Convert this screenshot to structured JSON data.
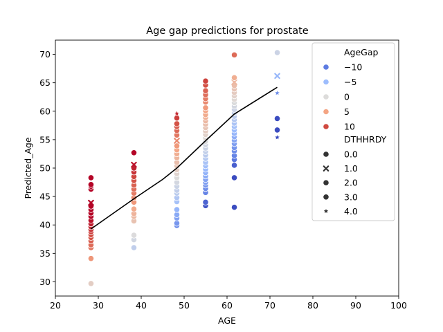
{
  "chart_data": {
    "type": "scatter",
    "title": "Age gap predictions for prostate",
    "xlabel": "AGE",
    "ylabel": "Predicted_Age",
    "xlim": [
      20,
      100
    ],
    "ylim": [
      27.5,
      72.5
    ],
    "xticks": [
      "20",
      "30",
      "40",
      "50",
      "60",
      "70",
      "80",
      "90",
      "100"
    ],
    "yticks": [
      "30",
      "35",
      "40",
      "45",
      "50",
      "55",
      "60",
      "65",
      "70"
    ],
    "grid": false,
    "legend": {
      "placement": "upper right",
      "hue_title": "AgeGap",
      "hue_entries": [
        {
          "label": "−10",
          "color": "#5e7ce2"
        },
        {
          "label": "−5",
          "color": "#9dbdfd"
        },
        {
          "label": "0",
          "color": "#dddcdb"
        },
        {
          "label": "5",
          "color": "#f4a584"
        },
        {
          "label": "10",
          "color": "#d04a40"
        }
      ],
      "style_title": "DTHHRDY",
      "style_entries": [
        {
          "label": "0.0",
          "marker": "circle"
        },
        {
          "label": "1.0",
          "marker": "x"
        },
        {
          "label": "2.0",
          "marker": "circle"
        },
        {
          "label": "3.0",
          "marker": "circle"
        },
        {
          "label": "4.0",
          "marker": "star"
        }
      ]
    },
    "trend_line": {
      "color": "#000000",
      "x": [
        28.3,
        38.3,
        45,
        48.3,
        55,
        61.7,
        71.7
      ],
      "y": [
        39.3,
        44.6,
        48,
        50,
        54.8,
        59.5,
        64.2
      ]
    },
    "points": [
      {
        "x": 28.3,
        "y": 29.7
      },
      {
        "x": 28.3,
        "y": 34.1
      },
      {
        "x": 28.3,
        "y": 36.0
      },
      {
        "x": 28.3,
        "y": 36.5
      },
      {
        "x": 28.3,
        "y": 37.2
      },
      {
        "x": 28.3,
        "y": 37.8
      },
      {
        "x": 28.3,
        "y": 38.3
      },
      {
        "x": 28.3,
        "y": 38.8
      },
      {
        "x": 28.3,
        "y": 39.2
      },
      {
        "x": 28.3,
        "y": 39.7
      },
      {
        "x": 28.3,
        "y": 40.2
      },
      {
        "x": 28.3,
        "y": 40.8
      },
      {
        "x": 28.3,
        "y": 41.5
      },
      {
        "x": 28.3,
        "y": 42.1
      },
      {
        "x": 28.3,
        "y": 42.7
      },
      {
        "x": 28.3,
        "y": 43.3
      },
      {
        "x": 28.3,
        "y": 43.9,
        "m": "x"
      },
      {
        "x": 28.3,
        "y": 46.3
      },
      {
        "x": 28.3,
        "y": 46.8
      },
      {
        "x": 28.3,
        "y": 47.1
      },
      {
        "x": 28.3,
        "y": 48.3
      },
      {
        "x": 38.3,
        "y": 36.0
      },
      {
        "x": 38.3,
        "y": 37.4
      },
      {
        "x": 38.3,
        "y": 38.2
      },
      {
        "x": 38.3,
        "y": 40.7
      },
      {
        "x": 38.3,
        "y": 41.5
      },
      {
        "x": 38.3,
        "y": 42.0
      },
      {
        "x": 38.3,
        "y": 42.8
      },
      {
        "x": 38.3,
        "y": 44.0
      },
      {
        "x": 38.3,
        "y": 44.8
      },
      {
        "x": 38.3,
        "y": 45.6
      },
      {
        "x": 38.3,
        "y": 46.3
      },
      {
        "x": 38.3,
        "y": 47.0
      },
      {
        "x": 38.3,
        "y": 47.8
      },
      {
        "x": 38.3,
        "y": 48.5
      },
      {
        "x": 38.3,
        "y": 49.3
      },
      {
        "x": 38.3,
        "y": 50.0
      },
      {
        "x": 38.3,
        "y": 50.6,
        "m": "x"
      },
      {
        "x": 38.3,
        "y": 52.7
      },
      {
        "x": 48.3,
        "y": 39.9
      },
      {
        "x": 48.3,
        "y": 40.3
      },
      {
        "x": 48.3,
        "y": 41.2
      },
      {
        "x": 48.3,
        "y": 41.8
      },
      {
        "x": 48.3,
        "y": 42.7
      },
      {
        "x": 48.3,
        "y": 44.1
      },
      {
        "x": 48.3,
        "y": 44.8
      },
      {
        "x": 48.3,
        "y": 45.6
      },
      {
        "x": 48.3,
        "y": 46.1
      },
      {
        "x": 48.3,
        "y": 46.8
      },
      {
        "x": 48.3,
        "y": 47.5
      },
      {
        "x": 48.3,
        "y": 48.3
      },
      {
        "x": 48.3,
        "y": 49.0
      },
      {
        "x": 48.3,
        "y": 49.7
      },
      {
        "x": 48.3,
        "y": 50.4
      },
      {
        "x": 48.3,
        "y": 51.0
      },
      {
        "x": 48.3,
        "y": 51.8
      },
      {
        "x": 48.3,
        "y": 52.5
      },
      {
        "x": 48.3,
        "y": 53.2
      },
      {
        "x": 48.3,
        "y": 53.9
      },
      {
        "x": 48.3,
        "y": 54.8,
        "m": "x"
      },
      {
        "x": 48.3,
        "y": 55.8
      },
      {
        "x": 48.3,
        "y": 56.6
      },
      {
        "x": 48.3,
        "y": 57.3
      },
      {
        "x": 48.3,
        "y": 57.8
      },
      {
        "x": 48.3,
        "y": 58.8
      },
      {
        "x": 48.3,
        "y": 59.6,
        "m": "star"
      },
      {
        "x": 55,
        "y": 43.4
      },
      {
        "x": 55,
        "y": 44.0
      },
      {
        "x": 55,
        "y": 45.7
      },
      {
        "x": 55,
        "y": 46.4
      },
      {
        "x": 55,
        "y": 47.0
      },
      {
        "x": 55,
        "y": 47.5
      },
      {
        "x": 55,
        "y": 48.0
      },
      {
        "x": 55,
        "y": 48.6
      },
      {
        "x": 55,
        "y": 49.2
      },
      {
        "x": 55,
        "y": 49.8
      },
      {
        "x": 55,
        "y": 50.4
      },
      {
        "x": 55,
        "y": 51.0
      },
      {
        "x": 55,
        "y": 51.7
      },
      {
        "x": 55,
        "y": 52.3
      },
      {
        "x": 55,
        "y": 52.9
      },
      {
        "x": 55,
        "y": 53.5
      },
      {
        "x": 55,
        "y": 54.1
      },
      {
        "x": 55,
        "y": 54.7
      },
      {
        "x": 55,
        "y": 55.3
      },
      {
        "x": 55,
        "y": 55.9
      },
      {
        "x": 55,
        "y": 56.5
      },
      {
        "x": 55,
        "y": 57.1
      },
      {
        "x": 55,
        "y": 57.7
      },
      {
        "x": 55,
        "y": 58.3
      },
      {
        "x": 55,
        "y": 58.9
      },
      {
        "x": 55,
        "y": 59.4
      },
      {
        "x": 55,
        "y": 60.1
      },
      {
        "x": 55,
        "y": 60.6
      },
      {
        "x": 55,
        "y": 61.6
      },
      {
        "x": 55,
        "y": 62.2
      },
      {
        "x": 55,
        "y": 62.9
      },
      {
        "x": 55,
        "y": 63.6
      },
      {
        "x": 55,
        "y": 64.6
      },
      {
        "x": 55,
        "y": 65.3
      },
      {
        "x": 61.7,
        "y": 43.1
      },
      {
        "x": 61.7,
        "y": 48.3
      },
      {
        "x": 61.7,
        "y": 50.5
      },
      {
        "x": 61.7,
        "y": 51.5
      },
      {
        "x": 61.7,
        "y": 52.2
      },
      {
        "x": 61.7,
        "y": 53.0
      },
      {
        "x": 61.7,
        "y": 53.6
      },
      {
        "x": 61.7,
        "y": 54.3
      },
      {
        "x": 61.7,
        "y": 54.9
      },
      {
        "x": 61.7,
        "y": 55.5
      },
      {
        "x": 61.7,
        "y": 56.1
      },
      {
        "x": 61.7,
        "y": 56.7
      },
      {
        "x": 61.7,
        "y": 57.3
      },
      {
        "x": 61.7,
        "y": 57.9
      },
      {
        "x": 61.7,
        "y": 58.5
      },
      {
        "x": 61.7,
        "y": 59.1
      },
      {
        "x": 61.7,
        "y": 59.7
      },
      {
        "x": 61.7,
        "y": 60.3
      },
      {
        "x": 61.7,
        "y": 60.9
      },
      {
        "x": 61.7,
        "y": 61.5
      },
      {
        "x": 61.7,
        "y": 62.1
      },
      {
        "x": 61.7,
        "y": 62.7
      },
      {
        "x": 61.7,
        "y": 63.3
      },
      {
        "x": 61.7,
        "y": 63.9
      },
      {
        "x": 61.7,
        "y": 64.5
      },
      {
        "x": 61.7,
        "y": 65.1,
        "m": "x"
      },
      {
        "x": 61.7,
        "y": 65.9
      },
      {
        "x": 61.7,
        "y": 69.9
      },
      {
        "x": 71.7,
        "y": 55.4,
        "m": "star"
      },
      {
        "x": 71.7,
        "y": 56.7
      },
      {
        "x": 71.7,
        "y": 58.7
      },
      {
        "x": 71.7,
        "y": 63.2,
        "m": "star"
      },
      {
        "x": 71.7,
        "y": 66.2,
        "m": "x"
      },
      {
        "x": 71.7,
        "y": 70.3
      }
    ]
  }
}
